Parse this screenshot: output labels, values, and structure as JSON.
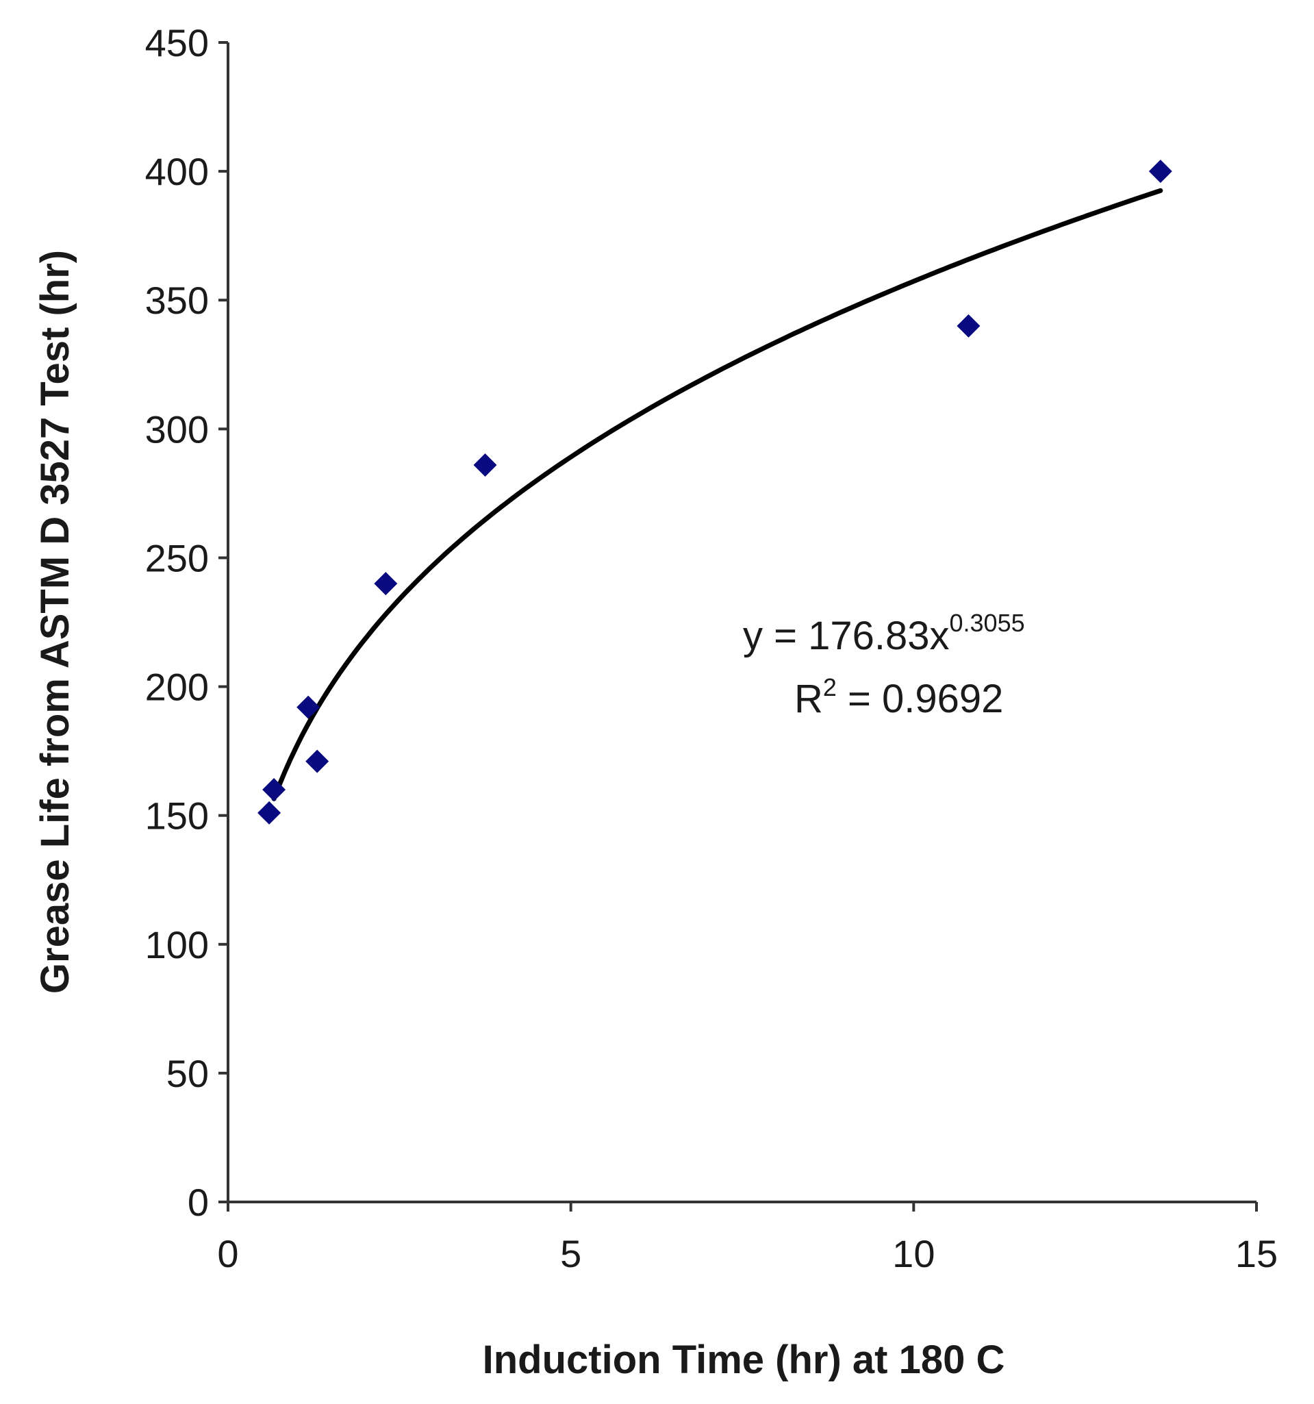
{
  "chart_data": {
    "type": "scatter",
    "title": "",
    "xlabel": "Induction Time (hr) at 180 C",
    "ylabel": "Grease Life from ASTM D 3527 Test (hr)",
    "xlim": [
      0,
      15
    ],
    "ylim": [
      0,
      450
    ],
    "xticks": [
      "0",
      "5",
      "10",
      "15"
    ],
    "yticks": [
      "0",
      "50",
      "100",
      "150",
      "200",
      "250",
      "300",
      "350",
      "400",
      "450"
    ],
    "grid": false,
    "legend": "none",
    "marker_color": "#0a0a80",
    "trendline_color": "#000000",
    "points": [
      {
        "x": 0.6,
        "y": 151
      },
      {
        "x": 0.67,
        "y": 160
      },
      {
        "x": 1.17,
        "y": 192
      },
      {
        "x": 1.3,
        "y": 171
      },
      {
        "x": 2.3,
        "y": 240
      },
      {
        "x": 3.75,
        "y": 286
      },
      {
        "x": 10.8,
        "y": 340
      },
      {
        "x": 13.6,
        "y": 400
      }
    ],
    "trendline": {
      "type": "power",
      "coefficient": 176.83,
      "exponent": 0.3055,
      "x_range": [
        0.67,
        13.6
      ]
    },
    "annotations": {
      "equation_base": "y = 176.83x",
      "equation_exponent": "0.3055",
      "r2_prefix": "R",
      "r2_sup": "2",
      "r2_value": " = 0.9692"
    }
  }
}
